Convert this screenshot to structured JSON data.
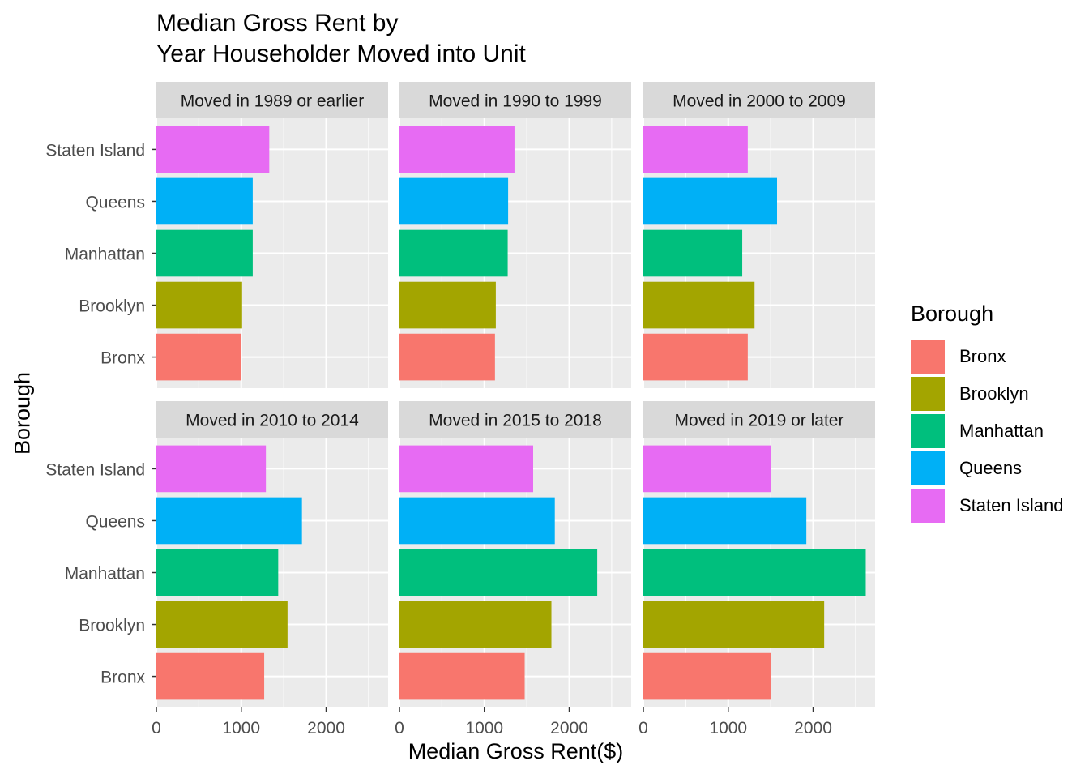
{
  "title": [
    "Median Gross Rent by",
    "Year Householder Moved into Unit"
  ],
  "chart_data": {
    "type": "bar",
    "orientation": "horizontal",
    "layout": "facet grid 2 rows x 3 columns",
    "xlabel": "Median Gross Rent($)",
    "ylabel": "Borough",
    "xlim": [
      0,
      2730
    ],
    "x_ticks": [
      0,
      1000,
      2000
    ],
    "categories": [
      "Bronx",
      "Brooklyn",
      "Manhattan",
      "Queens",
      "Staten Island"
    ],
    "grid": true,
    "legend_position": "right",
    "legend_title": "Borough",
    "colors": {
      "Bronx": "#F8766D",
      "Brooklyn": "#A3A500",
      "Manhattan": "#00BF7D",
      "Queens": "#00B0F6",
      "Staten Island": "#E76BF3"
    },
    "facets": [
      {
        "name": "Moved in 1989 or earlier",
        "values": [
          995,
          1010,
          1135,
          1135,
          1330
        ]
      },
      {
        "name": "Moved in 1990 to 1999",
        "values": [
          1125,
          1135,
          1275,
          1280,
          1355
        ]
      },
      {
        "name": "Moved in 2000 to 2009",
        "values": [
          1230,
          1310,
          1165,
          1575,
          1230
        ]
      },
      {
        "name": "Moved in 2010 to 2014",
        "values": [
          1270,
          1545,
          1435,
          1715,
          1290
        ]
      },
      {
        "name": "Moved in 2015 to 2018",
        "values": [
          1475,
          1790,
          2330,
          1830,
          1575
        ]
      },
      {
        "name": "Moved in 2019 or later",
        "values": [
          1500,
          2130,
          2620,
          1920,
          1500
        ]
      }
    ]
  },
  "legend": {
    "title": "Borough",
    "items": [
      {
        "label": "Bronx",
        "color": "#F8766D"
      },
      {
        "label": "Brooklyn",
        "color": "#A3A500"
      },
      {
        "label": "Manhattan",
        "color": "#00BF7D"
      },
      {
        "label": "Queens",
        "color": "#00B0F6"
      },
      {
        "label": "Staten Island",
        "color": "#E76BF3"
      }
    ]
  }
}
